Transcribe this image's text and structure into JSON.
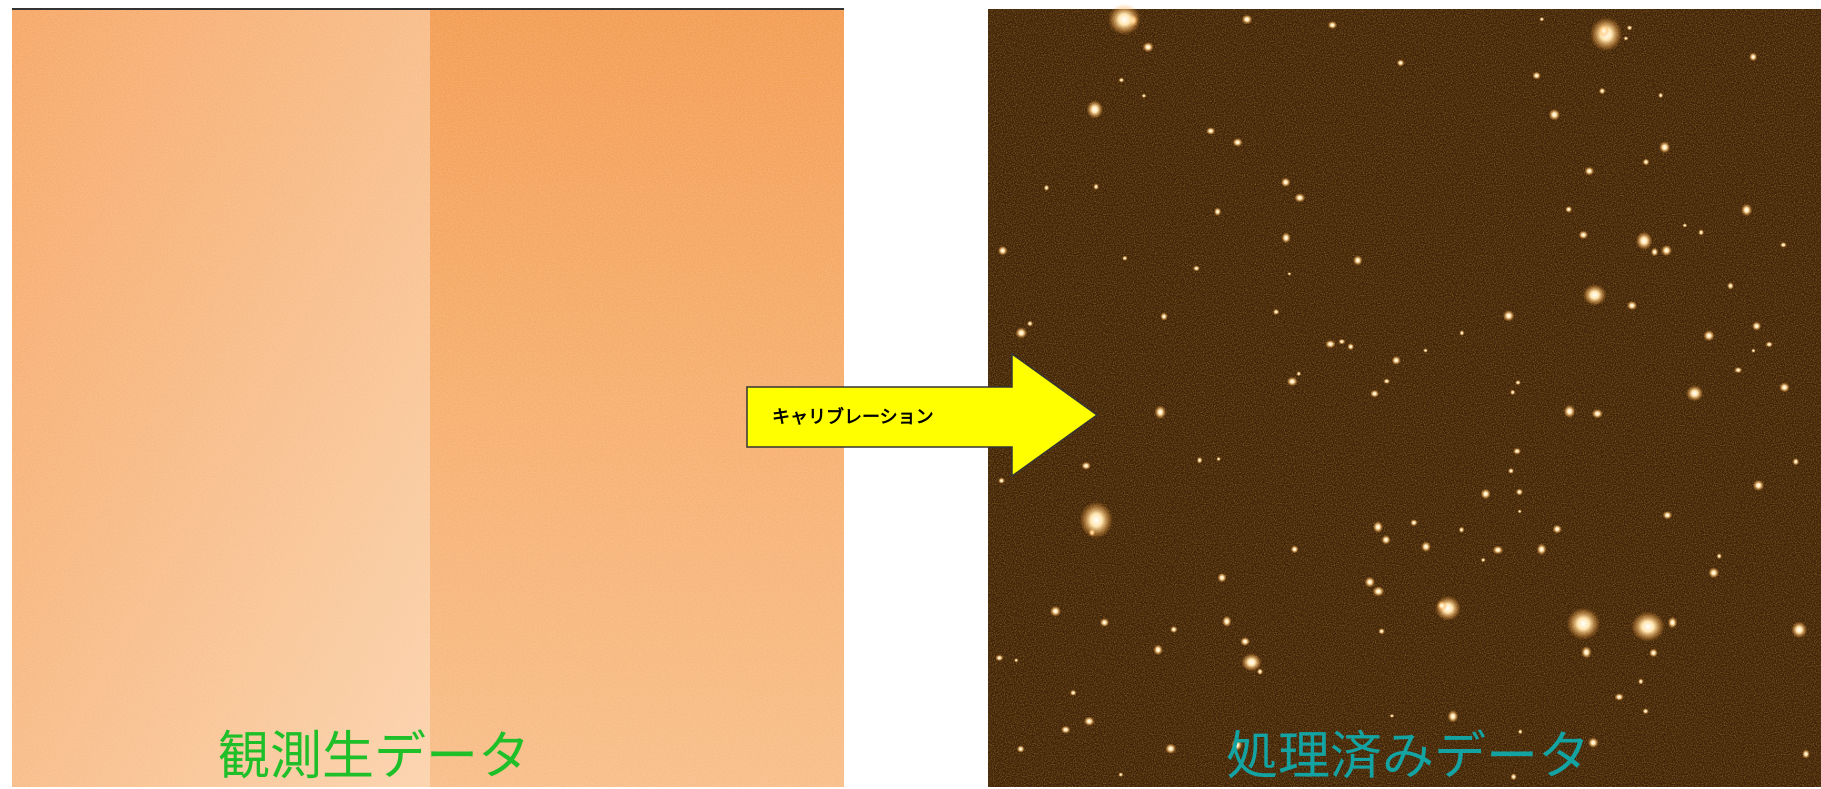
{
  "left_panel": {
    "label": "観測生データ"
  },
  "right_panel": {
    "label": "処理済みデータ"
  },
  "arrow": {
    "label": "キャリブレーション"
  }
}
